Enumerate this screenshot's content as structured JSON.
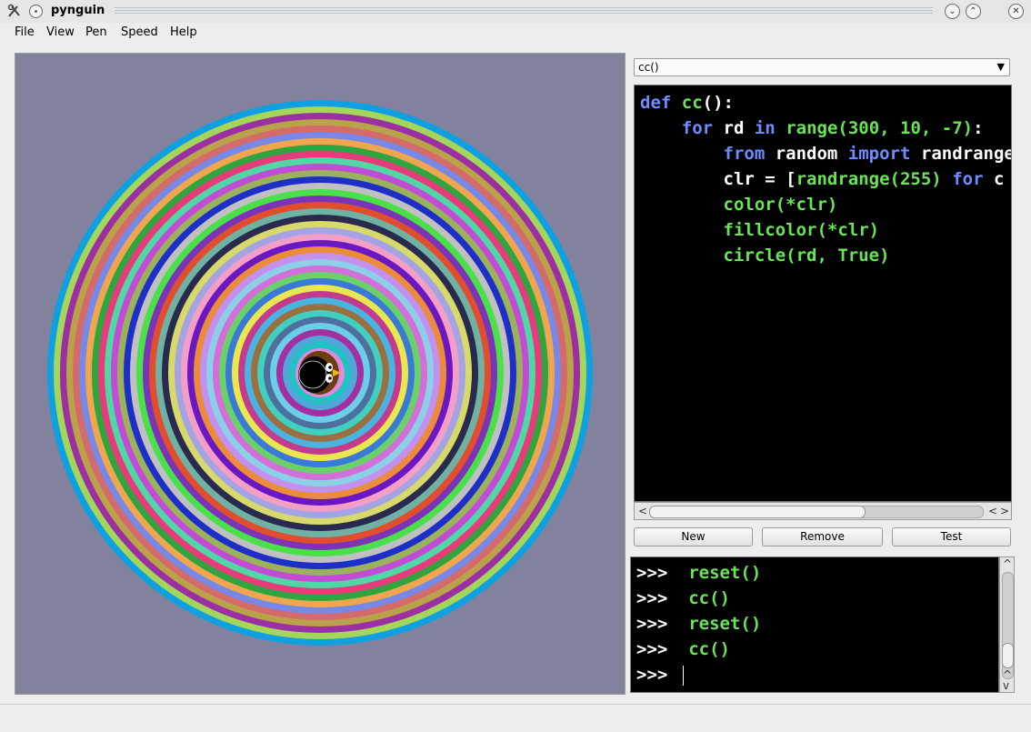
{
  "window": {
    "title": "pynguin",
    "controls": {
      "minimize": "⌄",
      "maximize": "⌃",
      "close": "✕"
    }
  },
  "menu": {
    "items": [
      "File",
      "View",
      "Pen",
      "Speed",
      "Help"
    ]
  },
  "editor": {
    "selected_function": "cc()",
    "code": [
      [
        [
          "def",
          "kw"
        ],
        [
          " ",
          "wh"
        ],
        [
          "cc",
          "fn"
        ],
        [
          "():",
          "wh"
        ]
      ],
      [
        [
          "    ",
          "wh"
        ],
        [
          "for",
          "kw"
        ],
        [
          " rd ",
          "wh"
        ],
        [
          "in",
          "kw"
        ],
        [
          " ",
          "wh"
        ],
        [
          "range(300, 10, -7)",
          "fn"
        ],
        [
          ":",
          "wh"
        ]
      ],
      [
        [
          "        ",
          "wh"
        ],
        [
          "from",
          "kw"
        ],
        [
          " random ",
          "wh"
        ],
        [
          "import",
          "kw"
        ],
        [
          " ",
          "wh"
        ],
        [
          "randrange",
          "wh"
        ]
      ],
      [
        [
          "        ",
          "wh"
        ],
        [
          "clr = [",
          "wh"
        ],
        [
          "randrange(255)",
          "fn"
        ],
        [
          " ",
          "wh"
        ],
        [
          "for",
          "kw"
        ],
        [
          " ",
          "wh"
        ],
        [
          "c",
          "wh"
        ]
      ],
      [
        [
          "        ",
          "wh"
        ],
        [
          "color(*clr)",
          "fn"
        ]
      ],
      [
        [
          "        ",
          "wh"
        ],
        [
          "fillcolor(*clr)",
          "fn"
        ]
      ],
      [
        [
          "        ",
          "wh"
        ],
        [
          "circle(rd, True)",
          "fn"
        ]
      ]
    ]
  },
  "buttons": {
    "new": "New",
    "remove": "Remove",
    "test": "Test"
  },
  "console": {
    "prompt": ">>>",
    "history": [
      "reset()",
      "cc()",
      "reset()",
      "cc()"
    ]
  },
  "colors": {
    "canvas_bg": "#82829f",
    "ring_colors": [
      "#0ea0e0",
      "#a4d65a",
      "#9b2fa3",
      "#b9a24a",
      "#d46a6a",
      "#7788e6",
      "#f0a64e",
      "#2fa43f",
      "#e93a7b",
      "#4fd7a6",
      "#c24cd6",
      "#9ab35b",
      "#1d2fc8",
      "#c0c0c0",
      "#4ae04a",
      "#7b33b8",
      "#e04e2e",
      "#6fb2a4",
      "#2a2a4f",
      "#d7d96a",
      "#a4a4e4",
      "#f29ec7",
      "#6b18c2",
      "#ea8c3a",
      "#c390f0",
      "#8cd0e8",
      "#d46ed8",
      "#6ad06a",
      "#3a7ad7",
      "#e8e84e",
      "#c33a8f",
      "#4ab4e0",
      "#9b6f3f",
      "#3fd0c0",
      "#4f6f9f",
      "#6bcde8",
      "#a42fa3",
      "#4fa8d7",
      "#20c2c2",
      "#e08adf"
    ]
  }
}
